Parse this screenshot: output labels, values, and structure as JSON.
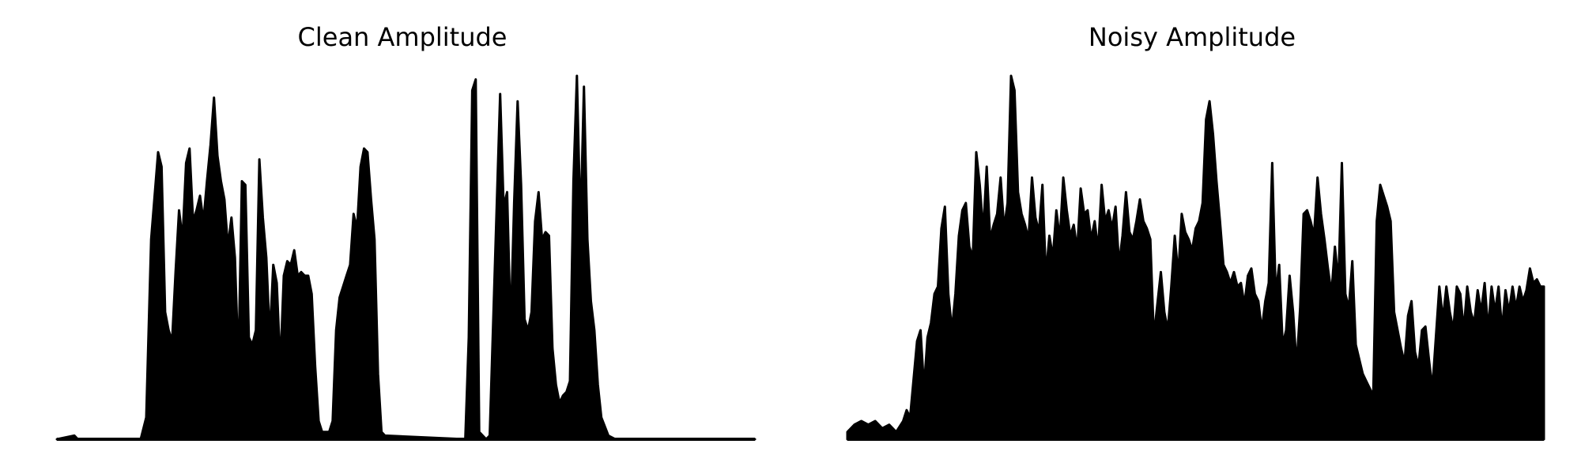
{
  "chart_data": [
    {
      "type": "area",
      "title": "Clean Amplitude",
      "xlabel": "",
      "ylabel": "",
      "axes_visible": false,
      "grid": false,
      "ylim": [
        0,
        1
      ],
      "color": "#000000",
      "envelope": [
        [
          0.0,
          0.0
        ],
        [
          0.025,
          0.01
        ],
        [
          0.03,
          0.0
        ],
        [
          0.12,
          0.0
        ],
        [
          0.128,
          0.06
        ],
        [
          0.135,
          0.55
        ],
        [
          0.145,
          0.79
        ],
        [
          0.15,
          0.75
        ],
        [
          0.155,
          0.35
        ],
        [
          0.16,
          0.3
        ],
        [
          0.165,
          0.27
        ],
        [
          0.17,
          0.46
        ],
        [
          0.175,
          0.63
        ],
        [
          0.18,
          0.55
        ],
        [
          0.185,
          0.76
        ],
        [
          0.19,
          0.8
        ],
        [
          0.195,
          0.6
        ],
        [
          0.2,
          0.63
        ],
        [
          0.205,
          0.67
        ],
        [
          0.21,
          0.6
        ],
        [
          0.215,
          0.71
        ],
        [
          0.22,
          0.81
        ],
        [
          0.225,
          0.94
        ],
        [
          0.23,
          0.78
        ],
        [
          0.235,
          0.71
        ],
        [
          0.24,
          0.66
        ],
        [
          0.245,
          0.53
        ],
        [
          0.25,
          0.61
        ],
        [
          0.255,
          0.5
        ],
        [
          0.26,
          0.2
        ],
        [
          0.265,
          0.71
        ],
        [
          0.27,
          0.7
        ],
        [
          0.275,
          0.28
        ],
        [
          0.28,
          0.26
        ],
        [
          0.285,
          0.3
        ],
        [
          0.29,
          0.77
        ],
        [
          0.295,
          0.61
        ],
        [
          0.3,
          0.5
        ],
        [
          0.305,
          0.28
        ],
        [
          0.31,
          0.48
        ],
        [
          0.315,
          0.43
        ],
        [
          0.32,
          0.2
        ],
        [
          0.325,
          0.45
        ],
        [
          0.33,
          0.49
        ],
        [
          0.335,
          0.48
        ],
        [
          0.34,
          0.52
        ],
        [
          0.345,
          0.45
        ],
        [
          0.35,
          0.46
        ],
        [
          0.355,
          0.45
        ],
        [
          0.36,
          0.45
        ],
        [
          0.365,
          0.4
        ],
        [
          0.37,
          0.2
        ],
        [
          0.375,
          0.05
        ],
        [
          0.38,
          0.02
        ],
        [
          0.39,
          0.02
        ],
        [
          0.395,
          0.05
        ],
        [
          0.4,
          0.3
        ],
        [
          0.405,
          0.39
        ],
        [
          0.41,
          0.42
        ],
        [
          0.415,
          0.45
        ],
        [
          0.42,
          0.48
        ],
        [
          0.425,
          0.62
        ],
        [
          0.43,
          0.58
        ],
        [
          0.435,
          0.75
        ],
        [
          0.44,
          0.8
        ],
        [
          0.445,
          0.79
        ],
        [
          0.45,
          0.66
        ],
        [
          0.455,
          0.55
        ],
        [
          0.46,
          0.18
        ],
        [
          0.465,
          0.02
        ],
        [
          0.47,
          0.01
        ],
        [
          0.585,
          0.0
        ],
        [
          0.59,
          0.28
        ],
        [
          0.595,
          0.96
        ],
        [
          0.6,
          0.99
        ],
        [
          0.605,
          0.02
        ],
        [
          0.615,
          0.0
        ],
        [
          0.62,
          0.01
        ],
        [
          0.635,
          0.95
        ],
        [
          0.64,
          0.64
        ],
        [
          0.645,
          0.68
        ],
        [
          0.65,
          0.3
        ],
        [
          0.655,
          0.65
        ],
        [
          0.66,
          0.93
        ],
        [
          0.665,
          0.7
        ],
        [
          0.67,
          0.33
        ],
        [
          0.675,
          0.3
        ],
        [
          0.68,
          0.35
        ],
        [
          0.685,
          0.6
        ],
        [
          0.69,
          0.68
        ],
        [
          0.695,
          0.55
        ],
        [
          0.7,
          0.57
        ],
        [
          0.705,
          0.56
        ],
        [
          0.71,
          0.25
        ],
        [
          0.715,
          0.15
        ],
        [
          0.72,
          0.1
        ],
        [
          0.725,
          0.12
        ],
        [
          0.73,
          0.13
        ],
        [
          0.735,
          0.16
        ],
        [
          0.74,
          0.71
        ],
        [
          0.745,
          1.0
        ],
        [
          0.75,
          0.58
        ],
        [
          0.755,
          0.97
        ],
        [
          0.76,
          0.55
        ],
        [
          0.765,
          0.38
        ],
        [
          0.77,
          0.3
        ],
        [
          0.775,
          0.15
        ],
        [
          0.78,
          0.06
        ],
        [
          0.79,
          0.01
        ],
        [
          0.8,
          0.0
        ],
        [
          1.0,
          0.0
        ]
      ]
    },
    {
      "type": "area",
      "title": "Noisy Amplitude",
      "xlabel": "",
      "ylabel": "",
      "axes_visible": false,
      "grid": false,
      "ylim": [
        0,
        1
      ],
      "color": "#000000",
      "envelope": [
        [
          0.0,
          0.02
        ],
        [
          0.01,
          0.04
        ],
        [
          0.02,
          0.05
        ],
        [
          0.03,
          0.04
        ],
        [
          0.04,
          0.05
        ],
        [
          0.05,
          0.03
        ],
        [
          0.06,
          0.04
        ],
        [
          0.07,
          0.02
        ],
        [
          0.08,
          0.05
        ],
        [
          0.085,
          0.08
        ],
        [
          0.09,
          0.06
        ],
        [
          0.1,
          0.27
        ],
        [
          0.105,
          0.3
        ],
        [
          0.11,
          0.14
        ],
        [
          0.115,
          0.28
        ],
        [
          0.12,
          0.32
        ],
        [
          0.125,
          0.4
        ],
        [
          0.13,
          0.42
        ],
        [
          0.135,
          0.58
        ],
        [
          0.14,
          0.64
        ],
        [
          0.145,
          0.4
        ],
        [
          0.15,
          0.3
        ],
        [
          0.155,
          0.4
        ],
        [
          0.16,
          0.56
        ],
        [
          0.165,
          0.63
        ],
        [
          0.17,
          0.65
        ],
        [
          0.175,
          0.53
        ],
        [
          0.18,
          0.5
        ],
        [
          0.185,
          0.79
        ],
        [
          0.19,
          0.7
        ],
        [
          0.195,
          0.57
        ],
        [
          0.2,
          0.75
        ],
        [
          0.205,
          0.55
        ],
        [
          0.21,
          0.59
        ],
        [
          0.215,
          0.62
        ],
        [
          0.22,
          0.72
        ],
        [
          0.225,
          0.58
        ],
        [
          0.23,
          0.65
        ],
        [
          0.235,
          1.0
        ],
        [
          0.24,
          0.96
        ],
        [
          0.245,
          0.68
        ],
        [
          0.25,
          0.62
        ],
        [
          0.255,
          0.59
        ],
        [
          0.26,
          0.55
        ],
        [
          0.265,
          0.72
        ],
        [
          0.27,
          0.61
        ],
        [
          0.275,
          0.57
        ],
        [
          0.28,
          0.7
        ],
        [
          0.285,
          0.45
        ],
        [
          0.29,
          0.56
        ],
        [
          0.295,
          0.5
        ],
        [
          0.3,
          0.63
        ],
        [
          0.305,
          0.55
        ],
        [
          0.31,
          0.72
        ],
        [
          0.315,
          0.63
        ],
        [
          0.32,
          0.56
        ],
        [
          0.325,
          0.59
        ],
        [
          0.33,
          0.52
        ],
        [
          0.335,
          0.69
        ],
        [
          0.34,
          0.62
        ],
        [
          0.345,
          0.63
        ],
        [
          0.35,
          0.55
        ],
        [
          0.355,
          0.6
        ],
        [
          0.36,
          0.52
        ],
        [
          0.365,
          0.7
        ],
        [
          0.37,
          0.6
        ],
        [
          0.375,
          0.63
        ],
        [
          0.38,
          0.58
        ],
        [
          0.385,
          0.64
        ],
        [
          0.39,
          0.48
        ],
        [
          0.395,
          0.56
        ],
        [
          0.4,
          0.68
        ],
        [
          0.405,
          0.57
        ],
        [
          0.41,
          0.55
        ],
        [
          0.415,
          0.6
        ],
        [
          0.42,
          0.66
        ],
        [
          0.425,
          0.6
        ],
        [
          0.43,
          0.58
        ],
        [
          0.435,
          0.55
        ],
        [
          0.44,
          0.28
        ],
        [
          0.445,
          0.37
        ],
        [
          0.45,
          0.46
        ],
        [
          0.455,
          0.35
        ],
        [
          0.46,
          0.3
        ],
        [
          0.465,
          0.42
        ],
        [
          0.47,
          0.56
        ],
        [
          0.475,
          0.45
        ],
        [
          0.48,
          0.62
        ],
        [
          0.485,
          0.57
        ],
        [
          0.49,
          0.55
        ],
        [
          0.495,
          0.52
        ],
        [
          0.5,
          0.58
        ],
        [
          0.505,
          0.6
        ],
        [
          0.51,
          0.65
        ],
        [
          0.515,
          0.88
        ],
        [
          0.52,
          0.93
        ],
        [
          0.525,
          0.84
        ],
        [
          0.53,
          0.71
        ],
        [
          0.535,
          0.6
        ],
        [
          0.54,
          0.48
        ],
        [
          0.545,
          0.46
        ],
        [
          0.55,
          0.43
        ],
        [
          0.555,
          0.46
        ],
        [
          0.56,
          0.42
        ],
        [
          0.565,
          0.43
        ],
        [
          0.57,
          0.37
        ],
        [
          0.575,
          0.45
        ],
        [
          0.58,
          0.47
        ],
        [
          0.585,
          0.4
        ],
        [
          0.59,
          0.38
        ],
        [
          0.595,
          0.3
        ],
        [
          0.6,
          0.38
        ],
        [
          0.605,
          0.43
        ],
        [
          0.61,
          0.76
        ],
        [
          0.615,
          0.4
        ],
        [
          0.62,
          0.48
        ],
        [
          0.625,
          0.26
        ],
        [
          0.63,
          0.3
        ],
        [
          0.635,
          0.45
        ],
        [
          0.64,
          0.35
        ],
        [
          0.645,
          0.2
        ],
        [
          0.65,
          0.36
        ],
        [
          0.655,
          0.62
        ],
        [
          0.66,
          0.63
        ],
        [
          0.665,
          0.6
        ],
        [
          0.67,
          0.56
        ],
        [
          0.675,
          0.72
        ],
        [
          0.68,
          0.62
        ],
        [
          0.685,
          0.55
        ],
        [
          0.69,
          0.47
        ],
        [
          0.695,
          0.4
        ],
        [
          0.7,
          0.53
        ],
        [
          0.705,
          0.43
        ],
        [
          0.71,
          0.76
        ],
        [
          0.715,
          0.4
        ],
        [
          0.72,
          0.36
        ],
        [
          0.725,
          0.49
        ],
        [
          0.73,
          0.26
        ],
        [
          0.735,
          0.22
        ],
        [
          0.74,
          0.18
        ],
        [
          0.745,
          0.16
        ],
        [
          0.75,
          0.14
        ],
        [
          0.755,
          0.12
        ],
        [
          0.76,
          0.6
        ],
        [
          0.765,
          0.7
        ],
        [
          0.77,
          0.67
        ],
        [
          0.775,
          0.64
        ],
        [
          0.78,
          0.6
        ],
        [
          0.785,
          0.35
        ],
        [
          0.79,
          0.3
        ],
        [
          0.795,
          0.25
        ],
        [
          0.8,
          0.21
        ],
        [
          0.805,
          0.34
        ],
        [
          0.81,
          0.38
        ],
        [
          0.815,
          0.24
        ],
        [
          0.82,
          0.2
        ],
        [
          0.825,
          0.3
        ],
        [
          0.83,
          0.31
        ],
        [
          0.835,
          0.22
        ],
        [
          0.84,
          0.14
        ],
        [
          0.845,
          0.28
        ],
        [
          0.85,
          0.42
        ],
        [
          0.855,
          0.33
        ],
        [
          0.86,
          0.42
        ],
        [
          0.865,
          0.35
        ],
        [
          0.87,
          0.3
        ],
        [
          0.875,
          0.42
        ],
        [
          0.88,
          0.4
        ],
        [
          0.885,
          0.3
        ],
        [
          0.89,
          0.42
        ],
        [
          0.895,
          0.35
        ],
        [
          0.9,
          0.32
        ],
        [
          0.905,
          0.41
        ],
        [
          0.91,
          0.35
        ],
        [
          0.915,
          0.43
        ],
        [
          0.92,
          0.3
        ],
        [
          0.925,
          0.42
        ],
        [
          0.93,
          0.35
        ],
        [
          0.935,
          0.42
        ],
        [
          0.94,
          0.3
        ],
        [
          0.945,
          0.41
        ],
        [
          0.95,
          0.35
        ],
        [
          0.955,
          0.42
        ],
        [
          0.96,
          0.36
        ],
        [
          0.965,
          0.42
        ],
        [
          0.97,
          0.38
        ],
        [
          0.975,
          0.41
        ],
        [
          0.98,
          0.47
        ],
        [
          0.985,
          0.43
        ],
        [
          0.99,
          0.44
        ],
        [
          0.995,
          0.42
        ],
        [
          1.0,
          0.42
        ]
      ]
    }
  ]
}
